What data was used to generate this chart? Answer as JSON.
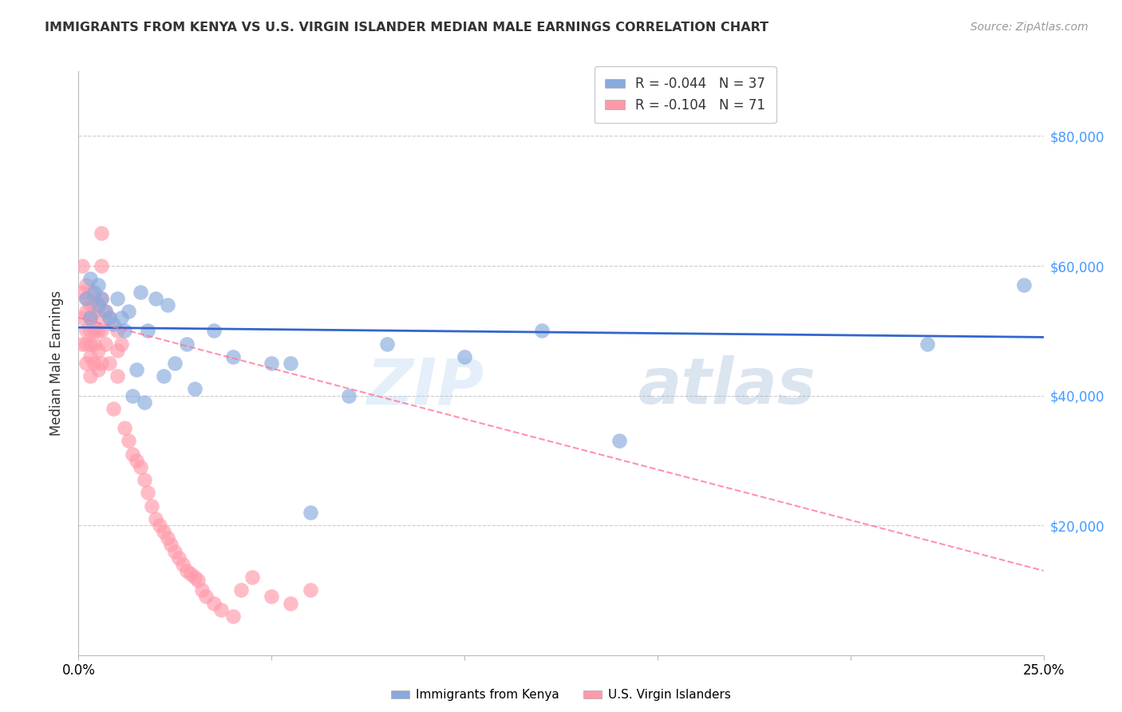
{
  "title": "IMMIGRANTS FROM KENYA VS U.S. VIRGIN ISLANDER MEDIAN MALE EARNINGS CORRELATION CHART",
  "source": "Source: ZipAtlas.com",
  "ylabel": "Median Male Earnings",
  "xlim": [
    0.0,
    0.25
  ],
  "ylim": [
    0,
    90000
  ],
  "yticks": [
    0,
    20000,
    40000,
    60000,
    80000
  ],
  "xticks": [
    0.0,
    0.05,
    0.1,
    0.15,
    0.2,
    0.25
  ],
  "legend_R_kenya": "-0.044",
  "legend_N_kenya": "37",
  "legend_R_virgin": "-0.104",
  "legend_N_virgin": "71",
  "kenya_color": "#88AADD",
  "virgin_color": "#FF99AA",
  "kenya_line_color": "#3366CC",
  "virgin_line_color": "#FF7799",
  "watermark_zip": "ZIP",
  "watermark_atlas": "atlas",
  "kenya_x": [
    0.002,
    0.003,
    0.003,
    0.004,
    0.005,
    0.005,
    0.006,
    0.007,
    0.008,
    0.009,
    0.01,
    0.011,
    0.012,
    0.013,
    0.014,
    0.015,
    0.016,
    0.017,
    0.02,
    0.022,
    0.025,
    0.03,
    0.035,
    0.04,
    0.055,
    0.06,
    0.08,
    0.1,
    0.12,
    0.14,
    0.22,
    0.245,
    0.018,
    0.023,
    0.028,
    0.05,
    0.07
  ],
  "kenya_y": [
    55000,
    58000,
    52000,
    56000,
    57000,
    54000,
    55000,
    53000,
    52000,
    51000,
    55000,
    52000,
    50000,
    53000,
    40000,
    44000,
    56000,
    39000,
    55000,
    43000,
    45000,
    41000,
    50000,
    46000,
    45000,
    22000,
    48000,
    46000,
    50000,
    33000,
    48000,
    57000,
    50000,
    54000,
    48000,
    45000,
    40000
  ],
  "virgin_x": [
    0.001,
    0.001,
    0.001,
    0.001,
    0.002,
    0.002,
    0.002,
    0.002,
    0.002,
    0.002,
    0.003,
    0.003,
    0.003,
    0.003,
    0.003,
    0.003,
    0.003,
    0.004,
    0.004,
    0.004,
    0.004,
    0.004,
    0.005,
    0.005,
    0.005,
    0.005,
    0.005,
    0.006,
    0.006,
    0.006,
    0.006,
    0.006,
    0.007,
    0.007,
    0.008,
    0.008,
    0.009,
    0.01,
    0.01,
    0.01,
    0.011,
    0.012,
    0.013,
    0.014,
    0.015,
    0.016,
    0.017,
    0.018,
    0.019,
    0.02,
    0.021,
    0.022,
    0.023,
    0.024,
    0.025,
    0.026,
    0.027,
    0.028,
    0.029,
    0.03,
    0.031,
    0.032,
    0.033,
    0.035,
    0.037,
    0.04,
    0.042,
    0.045,
    0.05,
    0.055,
    0.06
  ],
  "virgin_y": [
    60000,
    56000,
    52000,
    48000,
    57000,
    55000,
    53000,
    50000,
    48000,
    45000,
    56000,
    54000,
    52000,
    50000,
    48000,
    46000,
    43000,
    55000,
    53000,
    50000,
    48000,
    45000,
    54000,
    52000,
    50000,
    47000,
    44000,
    65000,
    60000,
    55000,
    50000,
    45000,
    53000,
    48000,
    52000,
    45000,
    38000,
    50000,
    47000,
    43000,
    48000,
    35000,
    33000,
    31000,
    30000,
    29000,
    27000,
    25000,
    23000,
    21000,
    20000,
    19000,
    18000,
    17000,
    16000,
    15000,
    14000,
    13000,
    12500,
    12000,
    11500,
    10000,
    9000,
    8000,
    7000,
    6000,
    10000,
    12000,
    9000,
    8000,
    10000
  ],
  "kenya_trend_y0": 50500,
  "kenya_trend_y1": 49000,
  "virgin_trend_y0": 52000,
  "virgin_trend_y1": 13000,
  "background_color": "#FFFFFF",
  "grid_color": "#CCCCCC",
  "right_tick_color": "#4499FF",
  "label_color": "#333333",
  "source_color": "#999999"
}
